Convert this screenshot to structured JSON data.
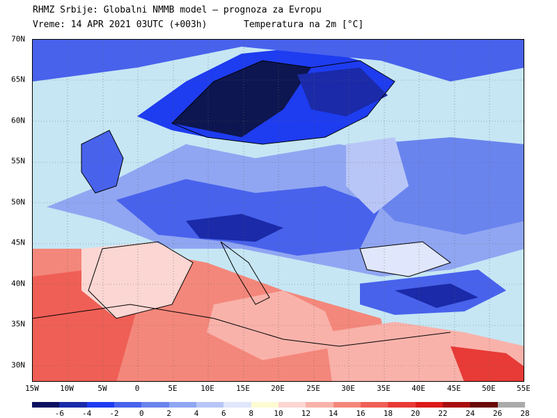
{
  "header": {
    "title": "RHMZ Srbije: Globalni NMMB model — prognoza za Evropu",
    "time": "Vreme: 14 APR 2021 03UTC (+003h)",
    "field": "Temperatura na 2m [°C]"
  },
  "map": {
    "lat_labels": [
      "70N",
      "65N",
      "60N",
      "55N",
      "50N",
      "45N",
      "40N",
      "35N",
      "30N"
    ],
    "lon_labels": [
      "15W",
      "10W",
      "5W",
      "0",
      "5E",
      "10E",
      "15E",
      "20E",
      "25E",
      "30E",
      "35E",
      "40E",
      "45E",
      "50E",
      "55E"
    ],
    "lat_range": [
      28,
      70
    ],
    "lon_range": [
      -15,
      55
    ]
  },
  "colorbar": {
    "colors": [
      "#0a1060",
      "#1a2aa8",
      "#1e3cf0",
      "#4862ec",
      "#6a84ee",
      "#90a6f2",
      "#b8c6f7",
      "#e0e6fb",
      "#fdfbd2",
      "#fcd6d2",
      "#f9b2aa",
      "#f4877b",
      "#ef5f55",
      "#e83a36",
      "#dc1a1a",
      "#a80e0e",
      "#6a0808",
      "#aaaaaa"
    ],
    "labels": [
      "-6",
      "-4",
      "-2",
      "0",
      "2",
      "4",
      "6",
      "8",
      "10",
      "12",
      "14",
      "16",
      "18",
      "20",
      "22",
      "24",
      "26",
      "28"
    ],
    "label_positions": [
      "-6",
      "-4",
      "-2",
      "0",
      "2",
      "4",
      "6",
      "8",
      "10",
      "12",
      "14",
      "16",
      "18",
      "20",
      "22",
      "24",
      "26",
      "28"
    ]
  },
  "palette": {
    "sea": "#c6e6f4",
    "cold_deep": "#0d1650",
    "cold": "#2840e0",
    "cool": "#7f95ef",
    "mild": "#e4e8fb",
    "warm_light": "#f9c0b8",
    "warm": "#f0766a",
    "hot": "#e03a32"
  }
}
